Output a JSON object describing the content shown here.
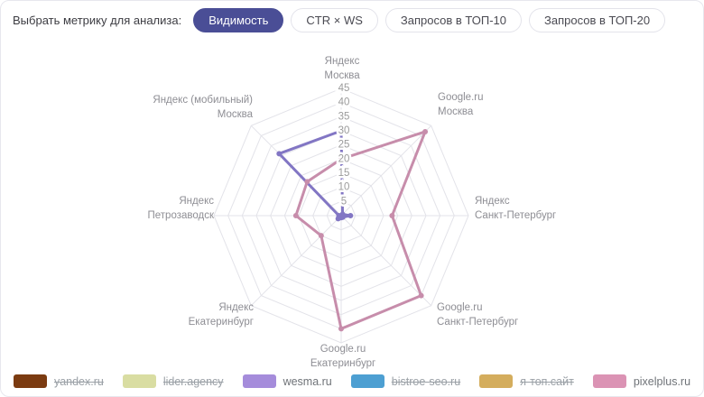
{
  "toolbar": {
    "label": "Выбрать метрику для анализа:",
    "buttons": [
      {
        "label": "Видимость",
        "active": true
      },
      {
        "label": "CTR × WS",
        "active": false
      },
      {
        "label": "Запросов в ТОП-10",
        "active": false
      },
      {
        "label": "Запросов в ТОП-20",
        "active": false
      }
    ]
  },
  "chart_data": {
    "type": "radar",
    "axes": [
      [
        "Яндекс",
        "Москва"
      ],
      [
        "Google.ru",
        "Москва"
      ],
      [
        "Яндекс",
        "Санкт-Петербург"
      ],
      [
        "Google.ru",
        "Санкт-Петербург"
      ],
      [
        "Google.ru",
        "Екатеринбург"
      ],
      [
        "Яндекс",
        "Екатеринбург"
      ],
      [
        "Яндекс",
        "Петрозаводск"
      ],
      [
        "Яндекс (мобильный)",
        "Москва"
      ]
    ],
    "r_ticks": [
      45,
      40,
      35,
      30,
      25,
      20,
      15,
      10,
      5
    ],
    "r_max": 45,
    "grid": true,
    "series": [
      {
        "name": "wesma.ru",
        "color": "#8276c4",
        "values": [
          30,
          0.7,
          3.3,
          0.8,
          0.7,
          1.5,
          0.8,
          31
        ]
      },
      {
        "name": "pixelplus.ru",
        "color": "#c78dab",
        "values": [
          20,
          42,
          18,
          40,
          40,
          10,
          16,
          17
        ]
      }
    ]
  },
  "legend": {
    "items": [
      {
        "label": "yandex.ru",
        "color": "#7b3b11",
        "hidden": true
      },
      {
        "label": "lider.agency",
        "color": "#d9dda2",
        "hidden": true
      },
      {
        "label": "wesma.ru",
        "color": "#a58cdb",
        "hidden": false
      },
      {
        "label": "bistroe-seo.ru",
        "color": "#4d9fd2",
        "hidden": true
      },
      {
        "label": "я-топ.сайт",
        "color": "#d4ad5d",
        "hidden": true
      },
      {
        "label": "pixelplus.ru",
        "color": "#db93b4",
        "hidden": false
      }
    ]
  },
  "colors": {
    "accent": "#4a4e96",
    "grid": "#e3e3e9",
    "tick_text": "#9b9b9b",
    "axis_text": "#8e8e94"
  }
}
